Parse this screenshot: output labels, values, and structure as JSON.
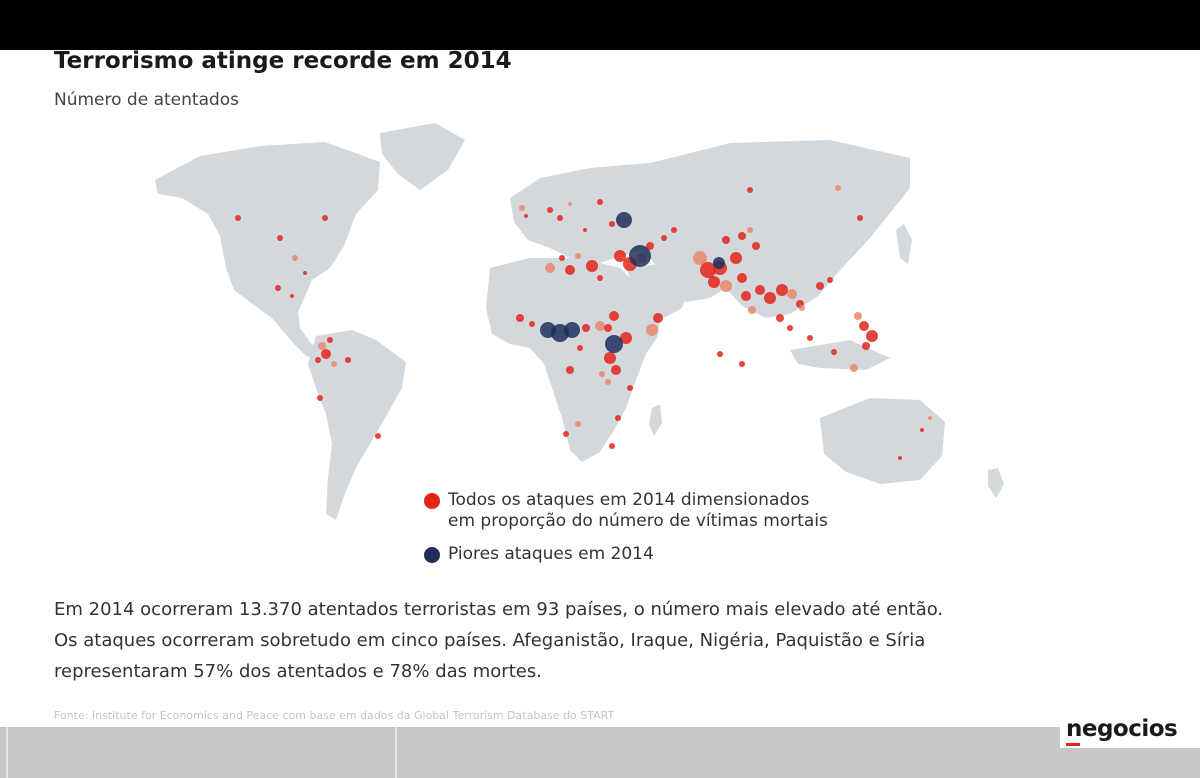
{
  "header": {
    "title": "Terrorismo atinge recorde em 2014",
    "subtitle": "Número de atentados"
  },
  "colors": {
    "land": "#d3d8dc",
    "attack": "#e3241b",
    "attack_small": "#e8876a",
    "worst": "#1f2f5c"
  },
  "legend": {
    "attacks_line1": "Todos os ataques em 2014 dimensionados",
    "attacks_line2": "em proporção do número de vítimas mortais",
    "worst_label": "Piores ataques em 2014"
  },
  "body": {
    "line1": "Em 2014 ocorreram 13.370 atentados terroristas em 93 países, o número mais elevado até então.",
    "line2": "Os ataques ocorreram sobretudo em cinco países. Afeganistão, Iraque, Nigéria, Paquistão e Síria",
    "line3": "representaram 57% dos atentados e 78% das mortes."
  },
  "source": "Fonte:  Institute for Economics and Peace com base em dados da Global Terrorism Database do START",
  "brand": {
    "name": "negocios"
  }
}
